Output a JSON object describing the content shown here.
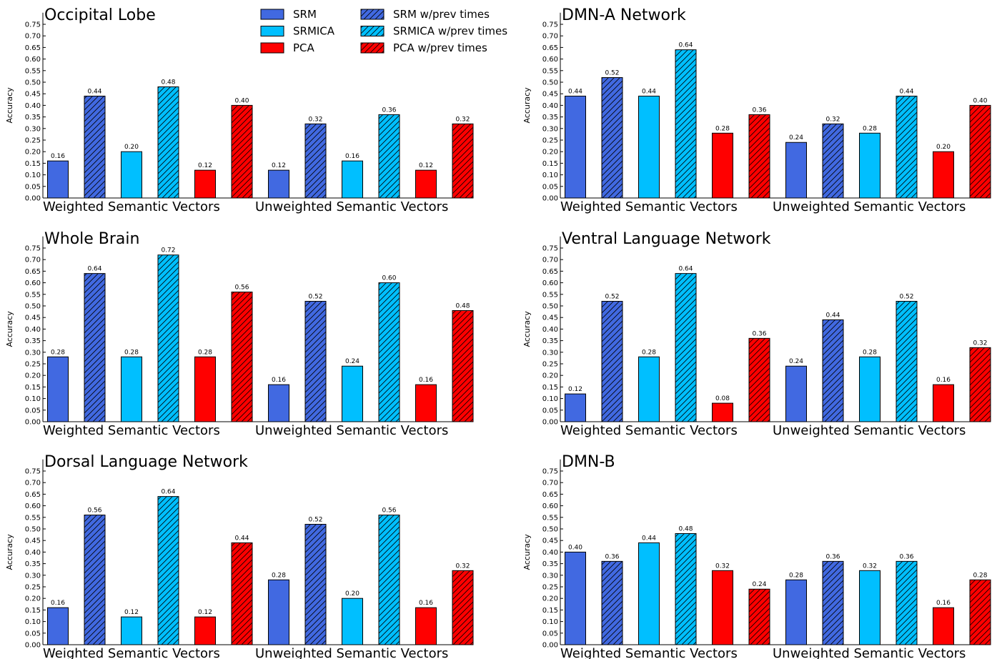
{
  "legend": [
    {
      "name": "SRM",
      "color": "#4169e1",
      "hatch": false
    },
    {
      "name": "SRM w/prev times",
      "color": "#4169e1",
      "hatch": true
    },
    {
      "name": "SRMICA",
      "color": "#00bfff",
      "hatch": false
    },
    {
      "name": "SRMICA w/prev times",
      "color": "#00bfff",
      "hatch": true
    },
    {
      "name": "PCA",
      "color": "#ff0000",
      "hatch": false
    },
    {
      "name": "PCA w/prev times",
      "color": "#ff0000",
      "hatch": true
    }
  ],
  "chart_data": [
    {
      "type": "bar",
      "title": "Occipital Lobe",
      "ylabel": "Accuracy",
      "categories": [
        "Weighted Semantic Vectors",
        "Unweighted Semantic Vectors"
      ],
      "ylim": [
        0,
        0.8
      ],
      "yticks": [
        {
          "value": 0,
          "label": "0.00"
        },
        {
          "value": 0.05,
          "label": "0.05"
        },
        {
          "value": 0.1,
          "label": "0.10"
        },
        {
          "value": 0.15,
          "label": "0.15"
        },
        {
          "value": 0.2,
          "label": "0.20"
        },
        {
          "value": 0.25,
          "label": "0.25"
        },
        {
          "value": 0.3,
          "label": "0.30"
        },
        {
          "value": 0.35,
          "label": "0.35"
        },
        {
          "value": 0.4,
          "label": "0.40"
        },
        {
          "value": 0.45,
          "label": "0.45"
        },
        {
          "value": 0.5,
          "label": "0.50"
        },
        {
          "value": 0.55,
          "label": "0.55"
        },
        {
          "value": 0.6,
          "label": "0.60"
        },
        {
          "value": 0.65,
          "label": "0.65"
        },
        {
          "value": 0.7,
          "label": "0.70"
        },
        {
          "value": 0.75,
          "label": "0.75"
        }
      ],
      "series": [
        {
          "values": [
            0.16,
            0.12
          ],
          "value_labels": [
            "0.16",
            "0.12"
          ]
        },
        {
          "values": [
            0.44,
            0.32
          ],
          "value_labels": [
            "0.44",
            "0.32"
          ]
        },
        {
          "values": [
            0.2,
            0.16
          ],
          "value_labels": [
            "0.20",
            "0.16"
          ]
        },
        {
          "values": [
            0.48,
            0.36
          ],
          "value_labels": [
            "0.48",
            "0.36"
          ]
        },
        {
          "values": [
            0.12,
            0.12
          ],
          "value_labels": [
            "0.12",
            "0.12"
          ]
        },
        {
          "values": [
            0.4,
            0.32
          ],
          "value_labels": [
            "0.40",
            "0.32"
          ]
        }
      ]
    },
    {
      "type": "bar",
      "title": "DMN-A Network",
      "ylabel": "Accuracy",
      "categories": [
        "Weighted Semantic Vectors",
        "Unweighted Semantic Vectors"
      ],
      "ylim": [
        0,
        0.8
      ],
      "yticks": [
        {
          "value": 0,
          "label": "0.00"
        },
        {
          "value": 0.05,
          "label": "0.05"
        },
        {
          "value": 0.1,
          "label": "0.10"
        },
        {
          "value": 0.15,
          "label": "0.15"
        },
        {
          "value": 0.2,
          "label": "0.20"
        },
        {
          "value": 0.25,
          "label": "0.25"
        },
        {
          "value": 0.3,
          "label": "0.30"
        },
        {
          "value": 0.35,
          "label": "0.35"
        },
        {
          "value": 0.4,
          "label": "0.40"
        },
        {
          "value": 0.45,
          "label": "0.45"
        },
        {
          "value": 0.5,
          "label": "0.50"
        },
        {
          "value": 0.55,
          "label": "0.55"
        },
        {
          "value": 0.6,
          "label": "0.60"
        },
        {
          "value": 0.65,
          "label": "0.65"
        },
        {
          "value": 0.7,
          "label": "0.70"
        },
        {
          "value": 0.75,
          "label": "0.75"
        }
      ],
      "series": [
        {
          "values": [
            0.44,
            0.24
          ],
          "value_labels": [
            "0.44",
            "0.24"
          ]
        },
        {
          "values": [
            0.52,
            0.32
          ],
          "value_labels": [
            "0.52",
            "0.32"
          ]
        },
        {
          "values": [
            0.44,
            0.28
          ],
          "value_labels": [
            "0.44",
            "0.28"
          ]
        },
        {
          "values": [
            0.64,
            0.44
          ],
          "value_labels": [
            "0.64",
            "0.44"
          ]
        },
        {
          "values": [
            0.28,
            0.2
          ],
          "value_labels": [
            "0.28",
            "0.20"
          ]
        },
        {
          "values": [
            0.36,
            0.4
          ],
          "value_labels": [
            "0.36",
            "0.40"
          ]
        }
      ]
    },
    {
      "type": "bar",
      "title": "Whole Brain",
      "ylabel": "Accuracy",
      "categories": [
        "Weighted Semantic Vectors",
        "Unweighted Semantic Vectors"
      ],
      "ylim": [
        0,
        0.8
      ],
      "yticks": [
        {
          "value": 0,
          "label": "0.00"
        },
        {
          "value": 0.05,
          "label": "0.05"
        },
        {
          "value": 0.1,
          "label": "0.10"
        },
        {
          "value": 0.15,
          "label": "0.15"
        },
        {
          "value": 0.2,
          "label": "0.20"
        },
        {
          "value": 0.25,
          "label": "0.25"
        },
        {
          "value": 0.3,
          "label": "0.30"
        },
        {
          "value": 0.35,
          "label": "0.35"
        },
        {
          "value": 0.4,
          "label": "0.40"
        },
        {
          "value": 0.45,
          "label": "0.45"
        },
        {
          "value": 0.5,
          "label": "0.50"
        },
        {
          "value": 0.55,
          "label": "0.55"
        },
        {
          "value": 0.6,
          "label": "0.60"
        },
        {
          "value": 0.65,
          "label": "0.65"
        },
        {
          "value": 0.7,
          "label": "0.70"
        },
        {
          "value": 0.75,
          "label": "0.75"
        }
      ],
      "series": [
        {
          "values": [
            0.28,
            0.16
          ],
          "value_labels": [
            "0.28",
            "0.16"
          ]
        },
        {
          "values": [
            0.64,
            0.52
          ],
          "value_labels": [
            "0.64",
            "0.52"
          ]
        },
        {
          "values": [
            0.28,
            0.24
          ],
          "value_labels": [
            "0.28",
            "0.24"
          ]
        },
        {
          "values": [
            0.72,
            0.6
          ],
          "value_labels": [
            "0.72",
            "0.60"
          ]
        },
        {
          "values": [
            0.28,
            0.16
          ],
          "value_labels": [
            "0.28",
            "0.16"
          ]
        },
        {
          "values": [
            0.56,
            0.48
          ],
          "value_labels": [
            "0.56",
            "0.48"
          ]
        }
      ]
    },
    {
      "type": "bar",
      "title": "Ventral Language Network",
      "ylabel": "Accuracy",
      "categories": [
        "Weighted Semantic Vectors",
        "Unweighted Semantic Vectors"
      ],
      "ylim": [
        0,
        0.8
      ],
      "yticks": [
        {
          "value": 0,
          "label": "0.00"
        },
        {
          "value": 0.05,
          "label": "0.05"
        },
        {
          "value": 0.1,
          "label": "0.10"
        },
        {
          "value": 0.15,
          "label": "0.15"
        },
        {
          "value": 0.2,
          "label": "0.20"
        },
        {
          "value": 0.25,
          "label": "0.25"
        },
        {
          "value": 0.3,
          "label": "0.30"
        },
        {
          "value": 0.35,
          "label": "0.35"
        },
        {
          "value": 0.4,
          "label": "0.40"
        },
        {
          "value": 0.45,
          "label": "0.45"
        },
        {
          "value": 0.5,
          "label": "0.50"
        },
        {
          "value": 0.55,
          "label": "0.55"
        },
        {
          "value": 0.6,
          "label": "0.60"
        },
        {
          "value": 0.65,
          "label": "0.65"
        },
        {
          "value": 0.7,
          "label": "0.70"
        },
        {
          "value": 0.75,
          "label": "0.75"
        }
      ],
      "series": [
        {
          "values": [
            0.12,
            0.24
          ],
          "value_labels": [
            "0.12",
            "0.24"
          ]
        },
        {
          "values": [
            0.52,
            0.44
          ],
          "value_labels": [
            "0.52",
            "0.44"
          ]
        },
        {
          "values": [
            0.28,
            0.28
          ],
          "value_labels": [
            "0.28",
            "0.28"
          ]
        },
        {
          "values": [
            0.64,
            0.52
          ],
          "value_labels": [
            "0.64",
            "0.52"
          ]
        },
        {
          "values": [
            0.08,
            0.16
          ],
          "value_labels": [
            "0.08",
            "0.16"
          ]
        },
        {
          "values": [
            0.36,
            0.32
          ],
          "value_labels": [
            "0.36",
            "0.32"
          ]
        }
      ]
    },
    {
      "type": "bar",
      "title": "Dorsal Language Network",
      "ylabel": "Accuracy",
      "categories": [
        "Weighted Semantic Vectors",
        "Unweighted Semantic Vectors"
      ],
      "ylim": [
        0,
        0.8
      ],
      "yticks": [
        {
          "value": 0,
          "label": "0.00"
        },
        {
          "value": 0.05,
          "label": "0.05"
        },
        {
          "value": 0.1,
          "label": "0.10"
        },
        {
          "value": 0.15,
          "label": "0.15"
        },
        {
          "value": 0.2,
          "label": "0.20"
        },
        {
          "value": 0.25,
          "label": "0.25"
        },
        {
          "value": 0.3,
          "label": "0.30"
        },
        {
          "value": 0.35,
          "label": "0.35"
        },
        {
          "value": 0.4,
          "label": "0.40"
        },
        {
          "value": 0.45,
          "label": "0.45"
        },
        {
          "value": 0.5,
          "label": "0.50"
        },
        {
          "value": 0.55,
          "label": "0.55"
        },
        {
          "value": 0.6,
          "label": "0.60"
        },
        {
          "value": 0.65,
          "label": "0.65"
        },
        {
          "value": 0.7,
          "label": "0.70"
        },
        {
          "value": 0.75,
          "label": "0.75"
        }
      ],
      "series": [
        {
          "values": [
            0.16,
            0.28
          ],
          "value_labels": [
            "0.16",
            "0.28"
          ]
        },
        {
          "values": [
            0.56,
            0.52
          ],
          "value_labels": [
            "0.56",
            "0.52"
          ]
        },
        {
          "values": [
            0.12,
            0.2
          ],
          "value_labels": [
            "0.12",
            "0.20"
          ]
        },
        {
          "values": [
            0.64,
            0.56
          ],
          "value_labels": [
            "0.64",
            "0.56"
          ]
        },
        {
          "values": [
            0.12,
            0.16
          ],
          "value_labels": [
            "0.12",
            "0.16"
          ]
        },
        {
          "values": [
            0.44,
            0.32
          ],
          "value_labels": [
            "0.44",
            "0.32"
          ]
        }
      ]
    },
    {
      "type": "bar",
      "title": "DMN-B",
      "ylabel": "Accuracy",
      "categories": [
        "Weighted Semantic Vectors",
        "Unweighted Semantic Vectors"
      ],
      "ylim": [
        0,
        0.8
      ],
      "yticks": [
        {
          "value": 0,
          "label": "0.00"
        },
        {
          "value": 0.05,
          "label": "0.05"
        },
        {
          "value": 0.1,
          "label": "0.10"
        },
        {
          "value": 0.15,
          "label": "0.15"
        },
        {
          "value": 0.2,
          "label": "0.20"
        },
        {
          "value": 0.25,
          "label": "0.25"
        },
        {
          "value": 0.3,
          "label": "0.30"
        },
        {
          "value": 0.35,
          "label": "0.35"
        },
        {
          "value": 0.4,
          "label": "0.40"
        },
        {
          "value": 0.45,
          "label": "0.45"
        },
        {
          "value": 0.5,
          "label": "0.50"
        },
        {
          "value": 0.55,
          "label": "0.55"
        },
        {
          "value": 0.6,
          "label": "0.60"
        },
        {
          "value": 0.65,
          "label": "0.65"
        },
        {
          "value": 0.7,
          "label": "0.70"
        },
        {
          "value": 0.75,
          "label": "0.75"
        }
      ],
      "series": [
        {
          "values": [
            0.4,
            0.28
          ],
          "value_labels": [
            "0.40",
            "0.28"
          ]
        },
        {
          "values": [
            0.36,
            0.36
          ],
          "value_labels": [
            "0.36",
            "0.36"
          ]
        },
        {
          "values": [
            0.44,
            0.32
          ],
          "value_labels": [
            "0.44",
            "0.32"
          ]
        },
        {
          "values": [
            0.48,
            0.36
          ],
          "value_labels": [
            "0.48",
            "0.36"
          ]
        },
        {
          "values": [
            0.32,
            0.16
          ],
          "value_labels": [
            "0.32",
            "0.16"
          ]
        },
        {
          "values": [
            0.24,
            0.28
          ],
          "value_labels": [
            "0.24",
            "0.28"
          ]
        }
      ]
    }
  ]
}
